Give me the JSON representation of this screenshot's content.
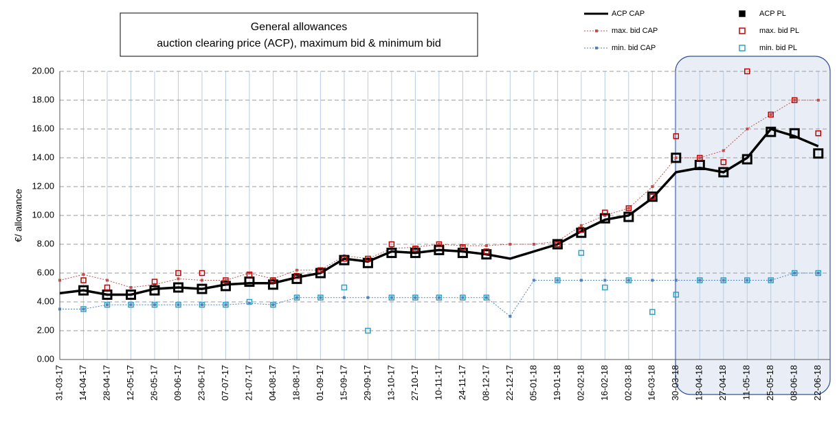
{
  "chart_data": {
    "type": "line",
    "title": [
      "General allowances",
      "auction clearing price (ACP),  maximum bid & minimum bid"
    ],
    "y_label": "€/ allowance",
    "categories": [
      "31-03-17",
      "14-04-17",
      "28-04-17",
      "12-05-17",
      "26-05-17",
      "09-06-17",
      "23-06-17",
      "07-07-17",
      "21-07-17",
      "04-08-17",
      "18-08-17",
      "01-09-17",
      "15-09-17",
      "29-09-17",
      "13-10-17",
      "27-10-17",
      "10-11-17",
      "24-11-17",
      "08-12-17",
      "22-12-17",
      "05-01-18",
      "19-01-18",
      "02-02-18",
      "16-02-18",
      "02-03-18",
      "16-03-18",
      "30-03-18",
      "13-04-18",
      "27-04-18",
      "11-05-18",
      "25-05-18",
      "08-06-18",
      "22-06-18"
    ],
    "ylim": [
      0,
      20
    ],
    "yticks": [
      {
        "value": 0,
        "label": "0.00"
      },
      {
        "value": 2,
        "label": "2.00"
      },
      {
        "value": 4,
        "label": "4.00"
      },
      {
        "value": 6,
        "label": "6.00"
      },
      {
        "value": 8,
        "label": "8.00"
      },
      {
        "value": 10,
        "label": "10.00"
      },
      {
        "value": 12,
        "label": "12.00"
      },
      {
        "value": 14,
        "label": "14.00"
      },
      {
        "value": 16,
        "label": "16.00"
      },
      {
        "value": 18,
        "label": "18.00"
      },
      {
        "value": 20,
        "label": "20.00"
      }
    ],
    "grid": true,
    "series": [
      {
        "name": "ACP CAP",
        "color": "#000000",
        "kind": "solid",
        "values": [
          4.6,
          4.8,
          4.5,
          4.5,
          4.9,
          5.0,
          4.9,
          5.2,
          5.3,
          5.3,
          5.7,
          6.0,
          7.0,
          6.8,
          7.5,
          7.4,
          7.6,
          7.5,
          7.3,
          7.0,
          7.5,
          8.0,
          8.9,
          9.7,
          10.0,
          11.2,
          13.0,
          13.3,
          13.0,
          14.0,
          16.0,
          15.5,
          14.8
        ]
      },
      {
        "name": "max. bid CAP",
        "color": "#c0504d",
        "kind": "dotted",
        "values": [
          5.5,
          5.9,
          5.5,
          5.0,
          5.2,
          5.6,
          5.5,
          5.5,
          6.0,
          5.6,
          6.2,
          6.2,
          7.2,
          7.0,
          7.7,
          7.8,
          8.0,
          7.9,
          7.9,
          8.0,
          8.0,
          8.2,
          9.3,
          10.0,
          10.5,
          12.0,
          14.0,
          14.0,
          14.5,
          16.0,
          17.0,
          18.0,
          18.0
        ]
      },
      {
        "name": "min. bid CAP",
        "color": "#4f81bd",
        "kind": "dotted",
        "values": [
          3.5,
          3.5,
          3.8,
          3.8,
          3.8,
          3.8,
          3.8,
          3.8,
          3.9,
          3.8,
          4.3,
          4.3,
          4.3,
          4.3,
          4.3,
          4.3,
          4.3,
          4.3,
          4.3,
          3.0,
          5.5,
          5.5,
          5.5,
          5.5,
          5.5,
          5.5,
          5.5,
          5.5,
          5.5,
          5.5,
          5.5,
          6.0,
          6.0
        ]
      },
      {
        "name": "ACP PL",
        "color": "#000000",
        "kind": "square",
        "values": [
          null,
          4.8,
          4.5,
          4.5,
          4.8,
          5.0,
          4.9,
          5.1,
          5.4,
          5.2,
          5.6,
          6.0,
          6.9,
          6.7,
          7.4,
          7.4,
          7.6,
          7.4,
          7.3,
          null,
          null,
          8.0,
          8.8,
          9.8,
          9.9,
          11.3,
          14.0,
          13.5,
          13.0,
          13.9,
          15.8,
          15.7,
          14.3
        ]
      },
      {
        "name": "max. bid PL",
        "color": "#c00000",
        "kind": "square",
        "values": [
          null,
          5.5,
          5.0,
          null,
          5.4,
          6.0,
          6.0,
          5.5,
          5.9,
          5.5,
          5.8,
          6.2,
          7.0,
          7.0,
          8.0,
          7.7,
          8.0,
          7.8,
          7.5,
          null,
          null,
          8.0,
          9.0,
          10.2,
          10.5,
          11.3,
          15.5,
          14.0,
          13.7,
          20.0,
          17.0,
          18.0,
          15.7
        ]
      },
      {
        "name": "min. bid PL",
        "color": "#31a0c0",
        "kind": "square",
        "values": [
          null,
          3.5,
          3.8,
          3.8,
          3.8,
          3.8,
          3.8,
          3.8,
          4.0,
          3.8,
          4.3,
          4.3,
          5.0,
          2.0,
          4.3,
          4.3,
          4.3,
          4.3,
          4.3,
          null,
          null,
          5.5,
          7.4,
          5.0,
          5.5,
          3.3,
          4.5,
          5.5,
          5.5,
          5.5,
          5.5,
          6.0,
          6.0
        ]
      }
    ]
  }
}
